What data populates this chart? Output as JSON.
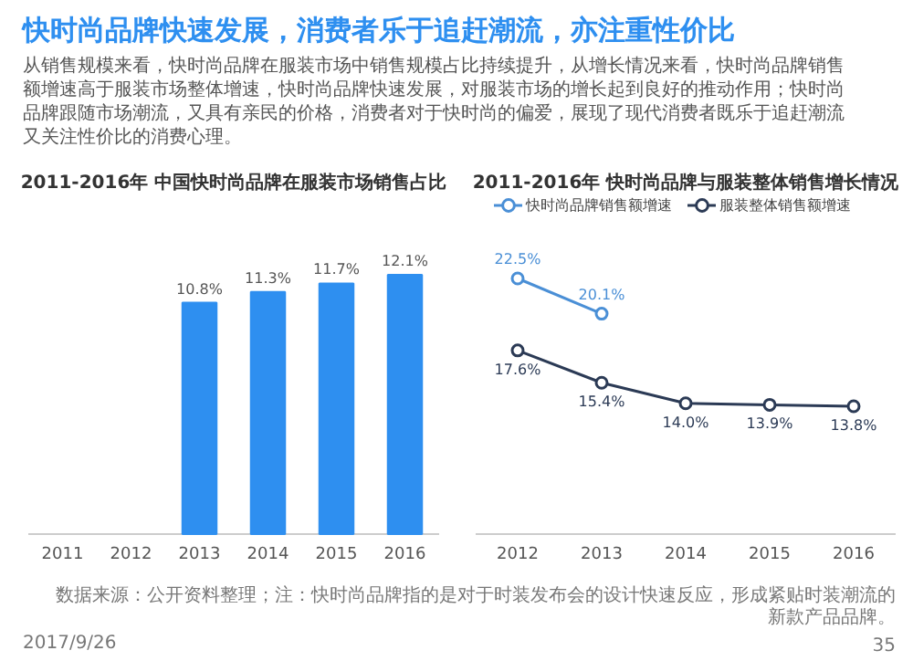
{
  "chart_data": [
    {
      "type": "other",
      "title": "快时尚品牌快速发展，消费者乐于追赶潮流，亦注重性价比",
      "subtitle": "从销售规模来看，快时尚品牌在服装市场中销售规模占比持续提升，从增长情况来看，快时尚品牌销售额增速高于服装市场整体增速，快时尚品牌快速发展，对服装市场的增长起到良好的推动作用；快时尚品牌跟随市场潮流，又具有亲民的价格，消费者对于快时尚的偏爱，展现了现代消费者既乐于追赶潮流又关注性价比的消费心理。",
      "annotations": [
        "数据来源：公开资料整理；注：快时尚品牌指的是对于时装发布会的设计快速反应，形成紧贴时装潮流的新款产品品牌。",
        "2017/9/26",
        "35"
      ]
    },
    {
      "type": "bar",
      "title": "2011-2016年 中国快时尚品牌在服装市场销售占比",
      "categories": [
        "2011",
        "2012",
        "2013",
        "2014",
        "2015",
        "2016"
      ],
      "values": [
        null,
        null,
        10.8,
        11.3,
        11.7,
        12.1
      ],
      "value_labels": [
        null,
        null,
        "10.8%",
        "11.3%",
        "11.7%",
        "12.1%"
      ],
      "color": "#2e8ff0",
      "grid": false
    },
    {
      "type": "line",
      "title": "2011-2016年 快时尚品牌与服装整体销售增长情况",
      "categories": [
        "2012",
        "2013",
        "2014",
        "2015",
        "2016"
      ],
      "legend": "top",
      "marker": "circle",
      "line_style": "solid",
      "grid": false,
      "series": [
        {
          "name": "快时尚品牌销售额增速",
          "color": "#4a8fd6",
          "values": [
            22.5,
            20.1,
            null,
            null,
            null
          ],
          "value_labels": [
            "22.5%",
            "20.1%",
            null,
            null,
            null
          ]
        },
        {
          "name": "服装整体销售额增速",
          "color": "#2b3a55",
          "values": [
            17.6,
            15.4,
            14.0,
            13.9,
            13.8
          ],
          "value_labels": [
            "17.6%",
            "15.4%",
            "14.0%",
            "13.9%",
            "13.8%"
          ]
        }
      ]
    }
  ]
}
